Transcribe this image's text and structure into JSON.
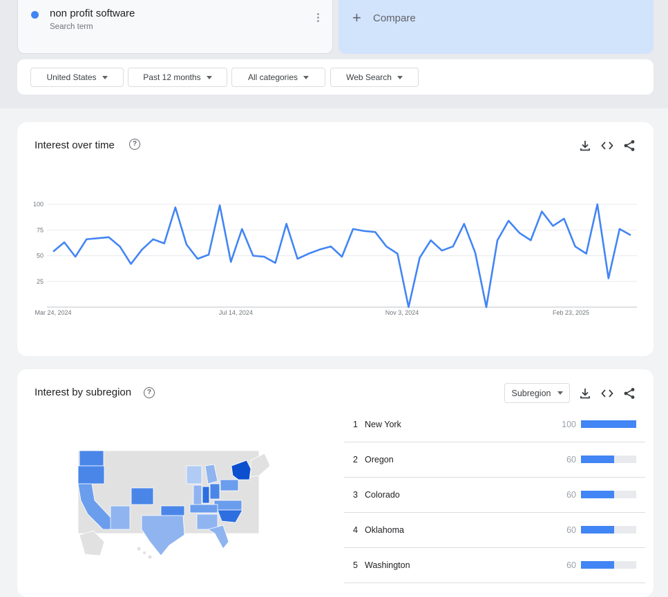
{
  "search_term": {
    "name": "non profit software",
    "sublabel": "Search term",
    "color": "#4285f4"
  },
  "compare": {
    "label": "Compare"
  },
  "filters": [
    {
      "label": "United States"
    },
    {
      "label": "Past 12 months"
    },
    {
      "label": "All categories"
    },
    {
      "label": "Web Search"
    }
  ],
  "interest_over_time": {
    "title": "Interest over time",
    "icons": [
      "download-icon",
      "embed-icon",
      "share-icon"
    ]
  },
  "chart_data": {
    "type": "line",
    "ylim": [
      0,
      100
    ],
    "yticks": [
      "100",
      "75",
      "50",
      "25"
    ],
    "xtick_labels": [
      "Mar 24, 2024",
      "Jul 14, 2024",
      "Nov 3, 2024",
      "Feb 23, 2025"
    ],
    "grid": true,
    "series": [
      {
        "color": "#4285f4",
        "values": [
          54,
          63,
          49,
          66,
          67,
          68,
          59,
          42,
          56,
          66,
          62,
          97,
          61,
          47,
          51,
          99,
          44,
          76,
          50,
          49,
          43,
          81,
          47,
          52,
          56,
          59,
          49,
          76,
          74,
          73,
          59,
          52,
          0,
          48,
          65,
          55,
          59,
          81,
          53,
          0,
          65,
          84,
          72,
          65,
          93,
          79,
          86,
          59,
          52,
          100,
          28,
          76,
          70
        ]
      }
    ]
  },
  "interest_by_subregion": {
    "title": "Interest by subregion",
    "dropdown": "Subregion",
    "regions": [
      {
        "rank": "1",
        "name": "New York",
        "value": "100",
        "level": 100
      },
      {
        "rank": "2",
        "name": "Oregon",
        "value": "60",
        "level": 60
      },
      {
        "rank": "3",
        "name": "Colorado",
        "value": "60",
        "level": 60
      },
      {
        "rank": "4",
        "name": "Oklahoma",
        "value": "60",
        "level": 60
      },
      {
        "rank": "5",
        "name": "Washington",
        "value": "60",
        "level": 60
      }
    ],
    "map_colors": {
      "high": "#1a56db",
      "mid": "#4a86e8",
      "low": "#8fb4f0",
      "none": "#e1e1e1"
    }
  }
}
